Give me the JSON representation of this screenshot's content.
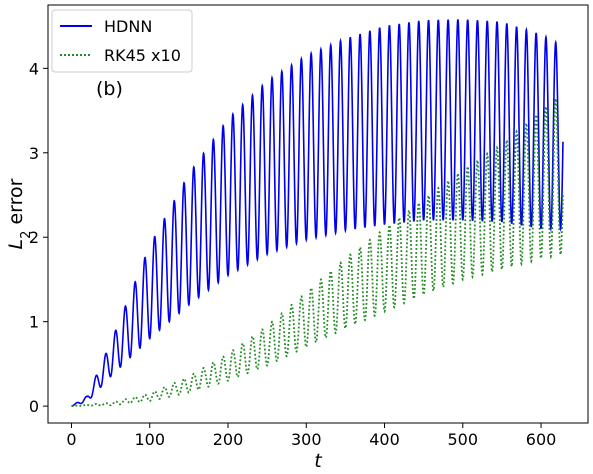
{
  "chart_data": {
    "type": "line",
    "title": "",
    "xlabel": "t",
    "ylabel_main": "L",
    "ylabel_sub": "2",
    "ylabel_rest": " error",
    "annotation": "(b)",
    "xlim": [
      -30,
      660
    ],
    "ylim": [
      -0.2,
      4.75
    ],
    "xticks": [
      0,
      100,
      200,
      300,
      400,
      500,
      600
    ],
    "yticks": [
      0,
      1,
      2,
      3,
      4
    ],
    "legend_position": "top-left",
    "grid": false,
    "t_max": 628,
    "period": 12.5,
    "series": [
      {
        "name": "HDNN",
        "color": "#0000ee",
        "style": "solid",
        "upper_envelope": [
          [
            0,
            0
          ],
          [
            20,
            0.12
          ],
          [
            50,
            0.75
          ],
          [
            100,
            1.9
          ],
          [
            150,
            2.75
          ],
          [
            200,
            3.4
          ],
          [
            250,
            3.85
          ],
          [
            300,
            4.15
          ],
          [
            350,
            4.35
          ],
          [
            400,
            4.5
          ],
          [
            450,
            4.57
          ],
          [
            500,
            4.58
          ],
          [
            550,
            4.55
          ],
          [
            600,
            4.4
          ],
          [
            620,
            4.3
          ],
          [
            628,
            4.3
          ]
        ],
        "lower_envelope": [
          [
            0,
            0
          ],
          [
            20,
            0.05
          ],
          [
            50,
            0.35
          ],
          [
            100,
            0.8
          ],
          [
            150,
            1.2
          ],
          [
            200,
            1.55
          ],
          [
            250,
            1.8
          ],
          [
            300,
            1.97
          ],
          [
            350,
            2.08
          ],
          [
            400,
            2.15
          ],
          [
            450,
            2.2
          ],
          [
            500,
            2.2
          ],
          [
            550,
            2.18
          ],
          [
            600,
            2.1
          ],
          [
            628,
            2.1
          ]
        ]
      },
      {
        "name": "RK45 x10",
        "color": "#228b22",
        "style": "dotted",
        "upper_envelope": [
          [
            0,
            0
          ],
          [
            50,
            0.04
          ],
          [
            100,
            0.15
          ],
          [
            150,
            0.35
          ],
          [
            200,
            0.62
          ],
          [
            250,
            0.95
          ],
          [
            300,
            1.35
          ],
          [
            350,
            1.75
          ],
          [
            400,
            2.1
          ],
          [
            450,
            2.45
          ],
          [
            500,
            2.8
          ],
          [
            550,
            3.1
          ],
          [
            600,
            3.5
          ],
          [
            620,
            3.65
          ],
          [
            628,
            3.3
          ]
        ],
        "lower_envelope": [
          [
            0,
            0
          ],
          [
            50,
            0.01
          ],
          [
            100,
            0.06
          ],
          [
            150,
            0.16
          ],
          [
            200,
            0.3
          ],
          [
            250,
            0.48
          ],
          [
            300,
            0.7
          ],
          [
            350,
            0.92
          ],
          [
            400,
            1.12
          ],
          [
            450,
            1.32
          ],
          [
            500,
            1.5
          ],
          [
            550,
            1.62
          ],
          [
            600,
            1.75
          ],
          [
            628,
            1.8
          ]
        ]
      }
    ]
  }
}
